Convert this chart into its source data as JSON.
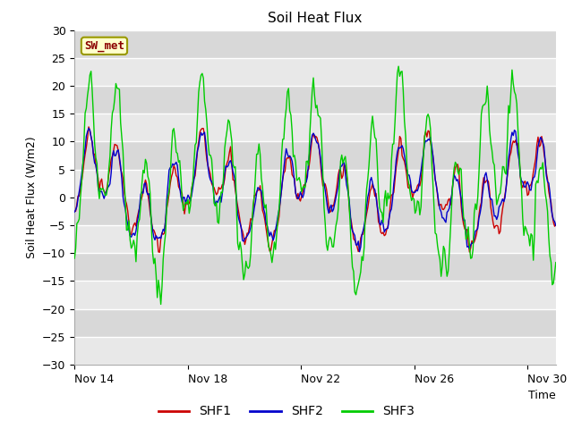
{
  "title": "Soil Heat Flux",
  "ylabel": "Soil Heat Flux (W/m2)",
  "xlabel": "Time",
  "ylim": [
    -30,
    30
  ],
  "yticks": [
    -30,
    -25,
    -20,
    -15,
    -10,
    -5,
    0,
    5,
    10,
    15,
    20,
    25,
    30
  ],
  "xtick_labels": [
    "Nov 14",
    "Nov 18",
    "Nov 22",
    "Nov 26",
    "Nov 30"
  ],
  "xtick_days": [
    0,
    4,
    8,
    12,
    16
  ],
  "total_days": 17,
  "colors": {
    "SHF1": "#cc0000",
    "SHF2": "#0000cc",
    "SHF3": "#00cc00"
  },
  "legend_label": "SW_met",
  "figure_bg": "#ffffff",
  "plot_bg": "#e8e8e8",
  "band_light": "#eeeeee",
  "band_dark": "#dddddd",
  "line_width": 1.0,
  "title_fontsize": 11,
  "axis_fontsize": 9,
  "tick_fontsize": 9
}
